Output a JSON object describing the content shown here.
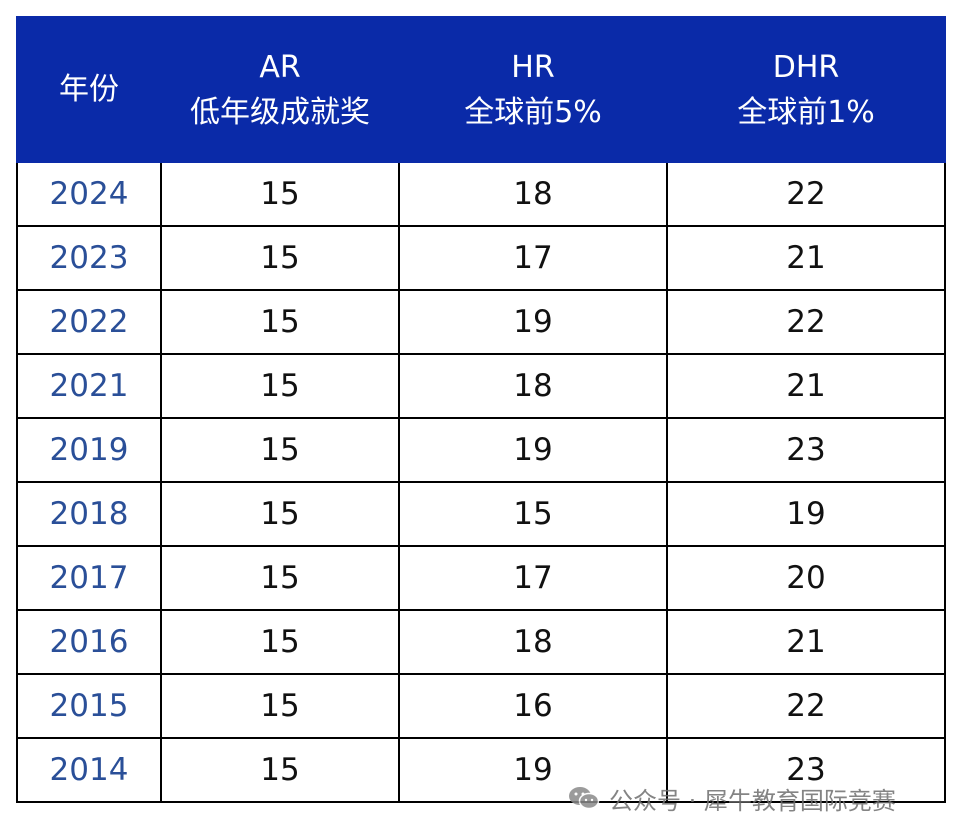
{
  "table": {
    "headers": [
      {
        "line1": "年份",
        "line2": ""
      },
      {
        "line1": "AR",
        "line2": "低年级成就奖"
      },
      {
        "line1": "HR",
        "line2": "全球前5%"
      },
      {
        "line1": "DHR",
        "line2": "全球前1%"
      }
    ],
    "rows": [
      {
        "year": "2024",
        "ar": "15",
        "hr": "18",
        "dhr": "22"
      },
      {
        "year": "2023",
        "ar": "15",
        "hr": "17",
        "dhr": "21"
      },
      {
        "year": "2022",
        "ar": "15",
        "hr": "19",
        "dhr": "22"
      },
      {
        "year": "2021",
        "ar": "15",
        "hr": "18",
        "dhr": "21"
      },
      {
        "year": "2019",
        "ar": "15",
        "hr": "19",
        "dhr": "23"
      },
      {
        "year": "2018",
        "ar": "15",
        "hr": "15",
        "dhr": "19"
      },
      {
        "year": "2017",
        "ar": "15",
        "hr": "17",
        "dhr": "20"
      },
      {
        "year": "2016",
        "ar": "15",
        "hr": "18",
        "dhr": "21"
      },
      {
        "year": "2015",
        "ar": "15",
        "hr": "16",
        "dhr": "22"
      },
      {
        "year": "2014",
        "ar": "15",
        "hr": "19",
        "dhr": "23"
      }
    ]
  },
  "watermark": {
    "text": "公众号 · 犀牛教育国际竞赛",
    "icon": "wechat-icon"
  },
  "colors": {
    "header_bg": "#0a2aa8",
    "header_text": "#ffffff",
    "year_text": "#2a4f98",
    "cell_text": "#111111",
    "border": "#000000"
  }
}
